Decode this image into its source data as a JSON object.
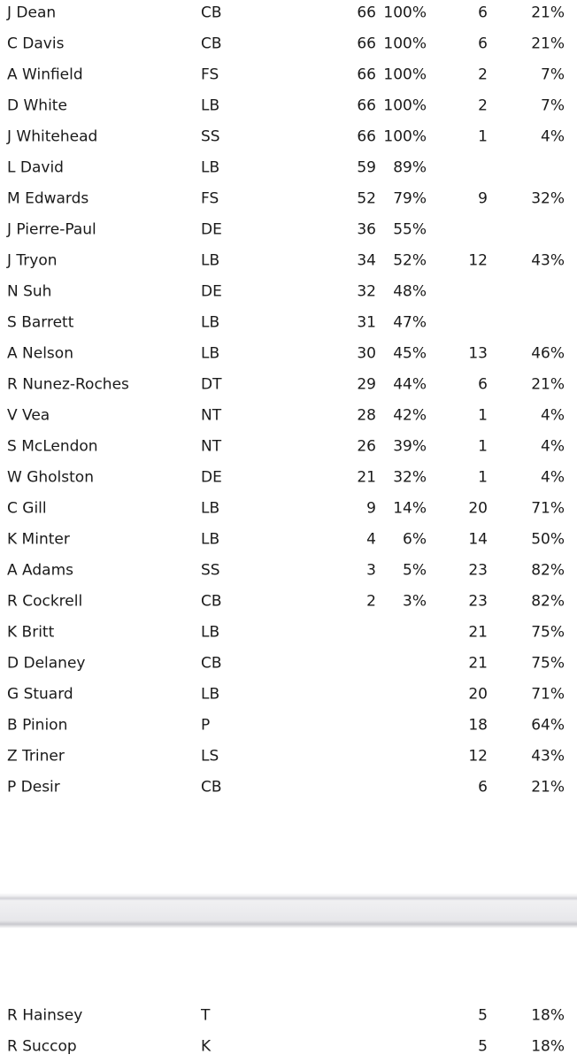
{
  "page": {
    "background_color": "#ffffff",
    "text_color": "#1a1a1a"
  },
  "defense_table": {
    "rows": [
      {
        "name": "J Dean",
        "pos": "CB",
        "count1": "66",
        "pct1": "100%",
        "count2": "6",
        "pct2": "21%"
      },
      {
        "name": "C Davis",
        "pos": "CB",
        "count1": "66",
        "pct1": "100%",
        "count2": "6",
        "pct2": "21%"
      },
      {
        "name": "A Winfield",
        "pos": "FS",
        "count1": "66",
        "pct1": "100%",
        "count2": "2",
        "pct2": "7%"
      },
      {
        "name": "D White",
        "pos": "LB",
        "count1": "66",
        "pct1": "100%",
        "count2": "2",
        "pct2": "7%"
      },
      {
        "name": "J Whitehead",
        "pos": "SS",
        "count1": "66",
        "pct1": "100%",
        "count2": "1",
        "pct2": "4%"
      },
      {
        "name": "L David",
        "pos": "LB",
        "count1": "59",
        "pct1": "89%",
        "count2": "",
        "pct2": ""
      },
      {
        "name": "M Edwards",
        "pos": "FS",
        "count1": "52",
        "pct1": "79%",
        "count2": "9",
        "pct2": "32%"
      },
      {
        "name": "J Pierre-Paul",
        "pos": "DE",
        "count1": "36",
        "pct1": "55%",
        "count2": "",
        "pct2": ""
      },
      {
        "name": "J Tryon",
        "pos": "LB",
        "count1": "34",
        "pct1": "52%",
        "count2": "12",
        "pct2": "43%"
      },
      {
        "name": "N Suh",
        "pos": "DE",
        "count1": "32",
        "pct1": "48%",
        "count2": "",
        "pct2": ""
      },
      {
        "name": "S Barrett",
        "pos": "LB",
        "count1": "31",
        "pct1": "47%",
        "count2": "",
        "pct2": ""
      },
      {
        "name": "A Nelson",
        "pos": "LB",
        "count1": "30",
        "pct1": "45%",
        "count2": "13",
        "pct2": "46%"
      },
      {
        "name": "R Nunez-Roches",
        "pos": "DT",
        "count1": "29",
        "pct1": "44%",
        "count2": "6",
        "pct2": "21%"
      },
      {
        "name": "V Vea",
        "pos": "NT",
        "count1": "28",
        "pct1": "42%",
        "count2": "1",
        "pct2": "4%"
      },
      {
        "name": "S McLendon",
        "pos": "NT",
        "count1": "26",
        "pct1": "39%",
        "count2": "1",
        "pct2": "4%"
      },
      {
        "name": "W Gholston",
        "pos": "DE",
        "count1": "21",
        "pct1": "32%",
        "count2": "1",
        "pct2": "4%"
      },
      {
        "name": "C Gill",
        "pos": "LB",
        "count1": "9",
        "pct1": "14%",
        "count2": "20",
        "pct2": "71%"
      },
      {
        "name": "K Minter",
        "pos": "LB",
        "count1": "4",
        "pct1": "6%",
        "count2": "14",
        "pct2": "50%"
      },
      {
        "name": "A Adams",
        "pos": "SS",
        "count1": "3",
        "pct1": "5%",
        "count2": "23",
        "pct2": "82%"
      },
      {
        "name": "R Cockrell",
        "pos": "CB",
        "count1": "2",
        "pct1": "3%",
        "count2": "23",
        "pct2": "82%"
      },
      {
        "name": "K Britt",
        "pos": "LB",
        "count1": "",
        "pct1": "",
        "count2": "21",
        "pct2": "75%"
      },
      {
        "name": "D Delaney",
        "pos": "CB",
        "count1": "",
        "pct1": "",
        "count2": "21",
        "pct2": "75%"
      },
      {
        "name": "G Stuard",
        "pos": "LB",
        "count1": "",
        "pct1": "",
        "count2": "20",
        "pct2": "71%"
      },
      {
        "name": "B Pinion",
        "pos": "P",
        "count1": "",
        "pct1": "",
        "count2": "18",
        "pct2": "64%"
      },
      {
        "name": "Z Triner",
        "pos": "LS",
        "count1": "",
        "pct1": "",
        "count2": "12",
        "pct2": "43%"
      },
      {
        "name": "P Desir",
        "pos": "CB",
        "count1": "",
        "pct1": "",
        "count2": "6",
        "pct2": "21%"
      }
    ]
  },
  "second_table": {
    "rows": [
      {
        "name": "R Hainsey",
        "pos": "T",
        "count1": "",
        "pct1": "",
        "count2": "5",
        "pct2": "18%"
      },
      {
        "name": "R Succop",
        "pos": "K",
        "count1": "",
        "pct1": "",
        "count2": "5",
        "pct2": "18%"
      }
    ]
  }
}
